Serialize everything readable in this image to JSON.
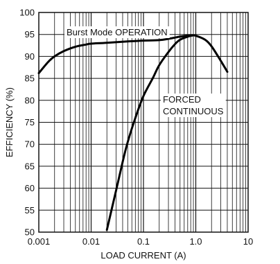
{
  "chart_data": {
    "type": "line",
    "xscale": "log",
    "xlim": [
      0.001,
      10
    ],
    "ylim": [
      50,
      100
    ],
    "grid": true,
    "xlabel": "LOAD CURRENT (A)",
    "ylabel": "EFFICIENCY (%)",
    "x_ticks": [
      "0.001",
      "0.01",
      "0.1",
      "1.0",
      "10"
    ],
    "y_ticks": [
      "50",
      "55",
      "60",
      "65",
      "70",
      "75",
      "80",
      "85",
      "90",
      "95",
      "100"
    ],
    "series": [
      {
        "name": "Burst Mode OPERATION",
        "x": [
          0.001,
          0.0015,
          0.002,
          0.003,
          0.005,
          0.008,
          0.01,
          0.02,
          0.05,
          0.1,
          0.2,
          0.3,
          0.5,
          0.8,
          1.0,
          1.5,
          2.0,
          3.0,
          4.0
        ],
        "y": [
          86.2,
          88.7,
          90.0,
          91.2,
          92.2,
          92.7,
          92.9,
          93.1,
          93.4,
          93.6,
          93.7,
          94.0,
          94.5,
          94.8,
          94.7,
          93.8,
          92.3,
          89.0,
          86.5
        ]
      },
      {
        "name": "FORCED CONTINUOUS",
        "x": [
          0.02,
          0.03,
          0.04,
          0.05,
          0.07,
          0.1,
          0.15,
          0.2,
          0.3,
          0.4,
          0.5,
          0.7,
          0.9
        ],
        "y": [
          50.5,
          59.5,
          66.0,
          70.5,
          76.0,
          81.0,
          85.0,
          88.0,
          91.0,
          92.8,
          93.8,
          94.5,
          94.8
        ]
      }
    ],
    "annotations": [
      "Burst Mode OPERATION",
      "FORCED",
      "CONTINUOUS"
    ]
  }
}
